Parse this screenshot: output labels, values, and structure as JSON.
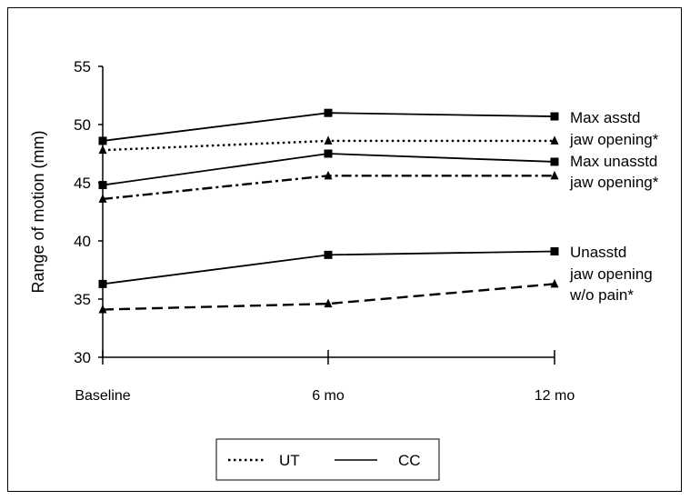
{
  "chart_data": {
    "type": "line",
    "title": "",
    "ylabel": "Range of motion (mm)",
    "xlabel": "",
    "categories": [
      "Baseline",
      "6 mo",
      "12 mo"
    ],
    "ylim": [
      30,
      55
    ],
    "yticks": [
      30,
      35,
      40,
      45,
      50,
      55
    ],
    "grid": false,
    "legend_position": "bottom-center",
    "series": [
      {
        "name": "UT",
        "measure": "asstd",
        "style": "dotted",
        "marker": "triangle",
        "values": [
          47.8,
          48.6,
          48.6
        ]
      },
      {
        "name": "CC",
        "measure": "asstd",
        "style": "solid",
        "marker": "square",
        "values": [
          48.6,
          51.0,
          50.7
        ]
      },
      {
        "name": "UT",
        "measure": "unasstd",
        "style": "dashdot",
        "marker": "triangle",
        "values": [
          43.6,
          45.6,
          45.6
        ]
      },
      {
        "name": "CC",
        "measure": "unasstd",
        "style": "solid",
        "marker": "square",
        "values": [
          44.8,
          47.5,
          46.8
        ]
      },
      {
        "name": "UT",
        "measure": "nopain",
        "style": "dashed",
        "marker": "triangle",
        "values": [
          34.1,
          34.6,
          36.3
        ]
      },
      {
        "name": "CC",
        "measure": "nopain",
        "style": "solid",
        "marker": "square",
        "values": [
          36.3,
          38.8,
          39.1
        ]
      }
    ],
    "annotations": [
      {
        "lines": [
          "Max asstd",
          "jaw opening*"
        ]
      },
      {
        "lines": [
          "Max unasstd",
          "jaw opening*"
        ]
      },
      {
        "lines": [
          "Unasstd",
          "jaw opening",
          "w/o pain*"
        ]
      }
    ],
    "legend": [
      {
        "label": "UT",
        "style": "dotted"
      },
      {
        "label": "CC",
        "style": "solid"
      }
    ]
  }
}
